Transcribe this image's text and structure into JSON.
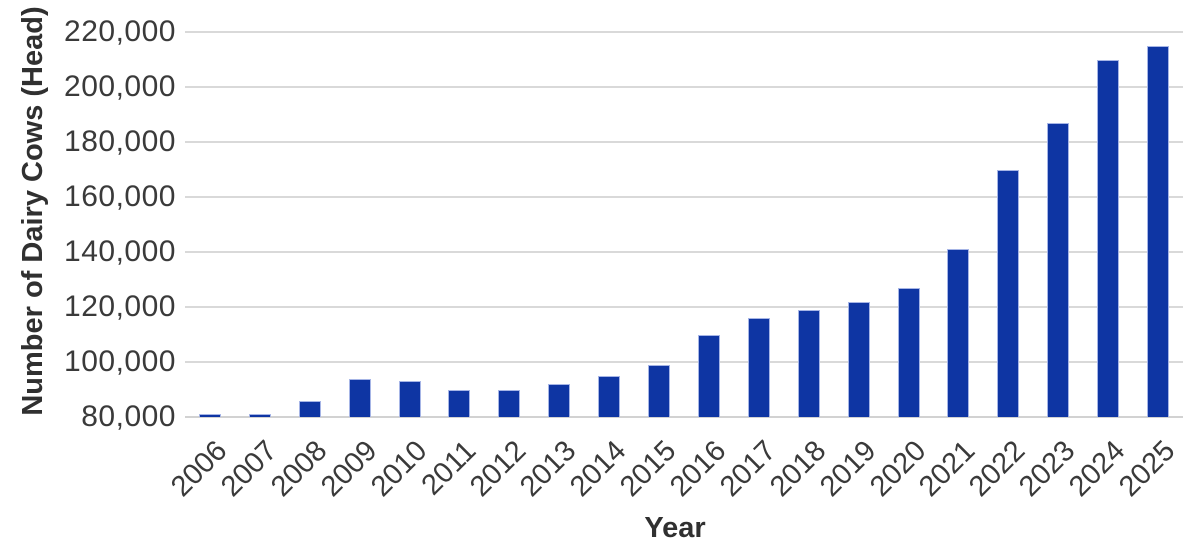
{
  "chart_data": {
    "type": "bar",
    "title": "",
    "xlabel": "Year",
    "ylabel": "Number of Dairy Cows (Head)",
    "categories": [
      "2006",
      "2007",
      "2008",
      "2009",
      "2010",
      "2011",
      "2012",
      "2013",
      "2014",
      "2015",
      "2016",
      "2017",
      "2018",
      "2019",
      "2020",
      "2021",
      "2022",
      "2023",
      "2024",
      "2025"
    ],
    "values": [
      81000,
      81000,
      86000,
      94000,
      93000,
      90000,
      90000,
      92000,
      95000,
      99000,
      110000,
      116000,
      119000,
      122000,
      127000,
      141000,
      170000,
      187000,
      210000,
      215000
    ],
    "ylim": [
      80000,
      220000
    ],
    "ytick_step": 20000,
    "ytick_labels": [
      "80,000",
      "100,000",
      "120,000",
      "140,000",
      "160,000",
      "180,000",
      "200,000",
      "220,000"
    ],
    "grid": true,
    "legend": false,
    "colors": {
      "bar_fill": "#0E35A3",
      "bar_border": "#A6B5E6",
      "gridline": "#D9D9D9",
      "baseline": "#D2D2D2",
      "tick_text": "#3A3A3A",
      "axis_title_text": "#303030",
      "background": "#FFFFFF"
    }
  }
}
